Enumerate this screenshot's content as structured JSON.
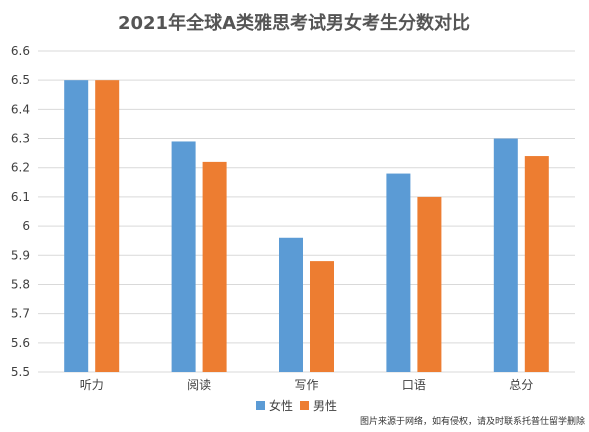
{
  "chart_data": {
    "type": "bar",
    "title": "2021年全球A类雅思考试男女考生分数对比",
    "categories": [
      "听力",
      "阅读",
      "写作",
      "口语",
      "总分"
    ],
    "series": [
      {
        "name": "女性",
        "color": "#5B9BD5",
        "values": [
          6.5,
          6.29,
          5.96,
          6.18,
          6.3
        ]
      },
      {
        "name": "男性",
        "color": "#ED7D31",
        "values": [
          6.5,
          6.22,
          5.88,
          6.1,
          6.24
        ]
      }
    ],
    "ylim": [
      5.5,
      6.6
    ],
    "yticks": [
      "5.5",
      "5.6",
      "5.7",
      "5.8",
      "5.9",
      "6",
      "6.1",
      "6.2",
      "6.3",
      "6.4",
      "6.5",
      "6.6"
    ],
    "grid": true,
    "legend": "bottom-center",
    "xlabel": "",
    "ylabel": ""
  },
  "watermark": "图片来源于网络，如有侵权，请及时联系托普仕留学删除"
}
